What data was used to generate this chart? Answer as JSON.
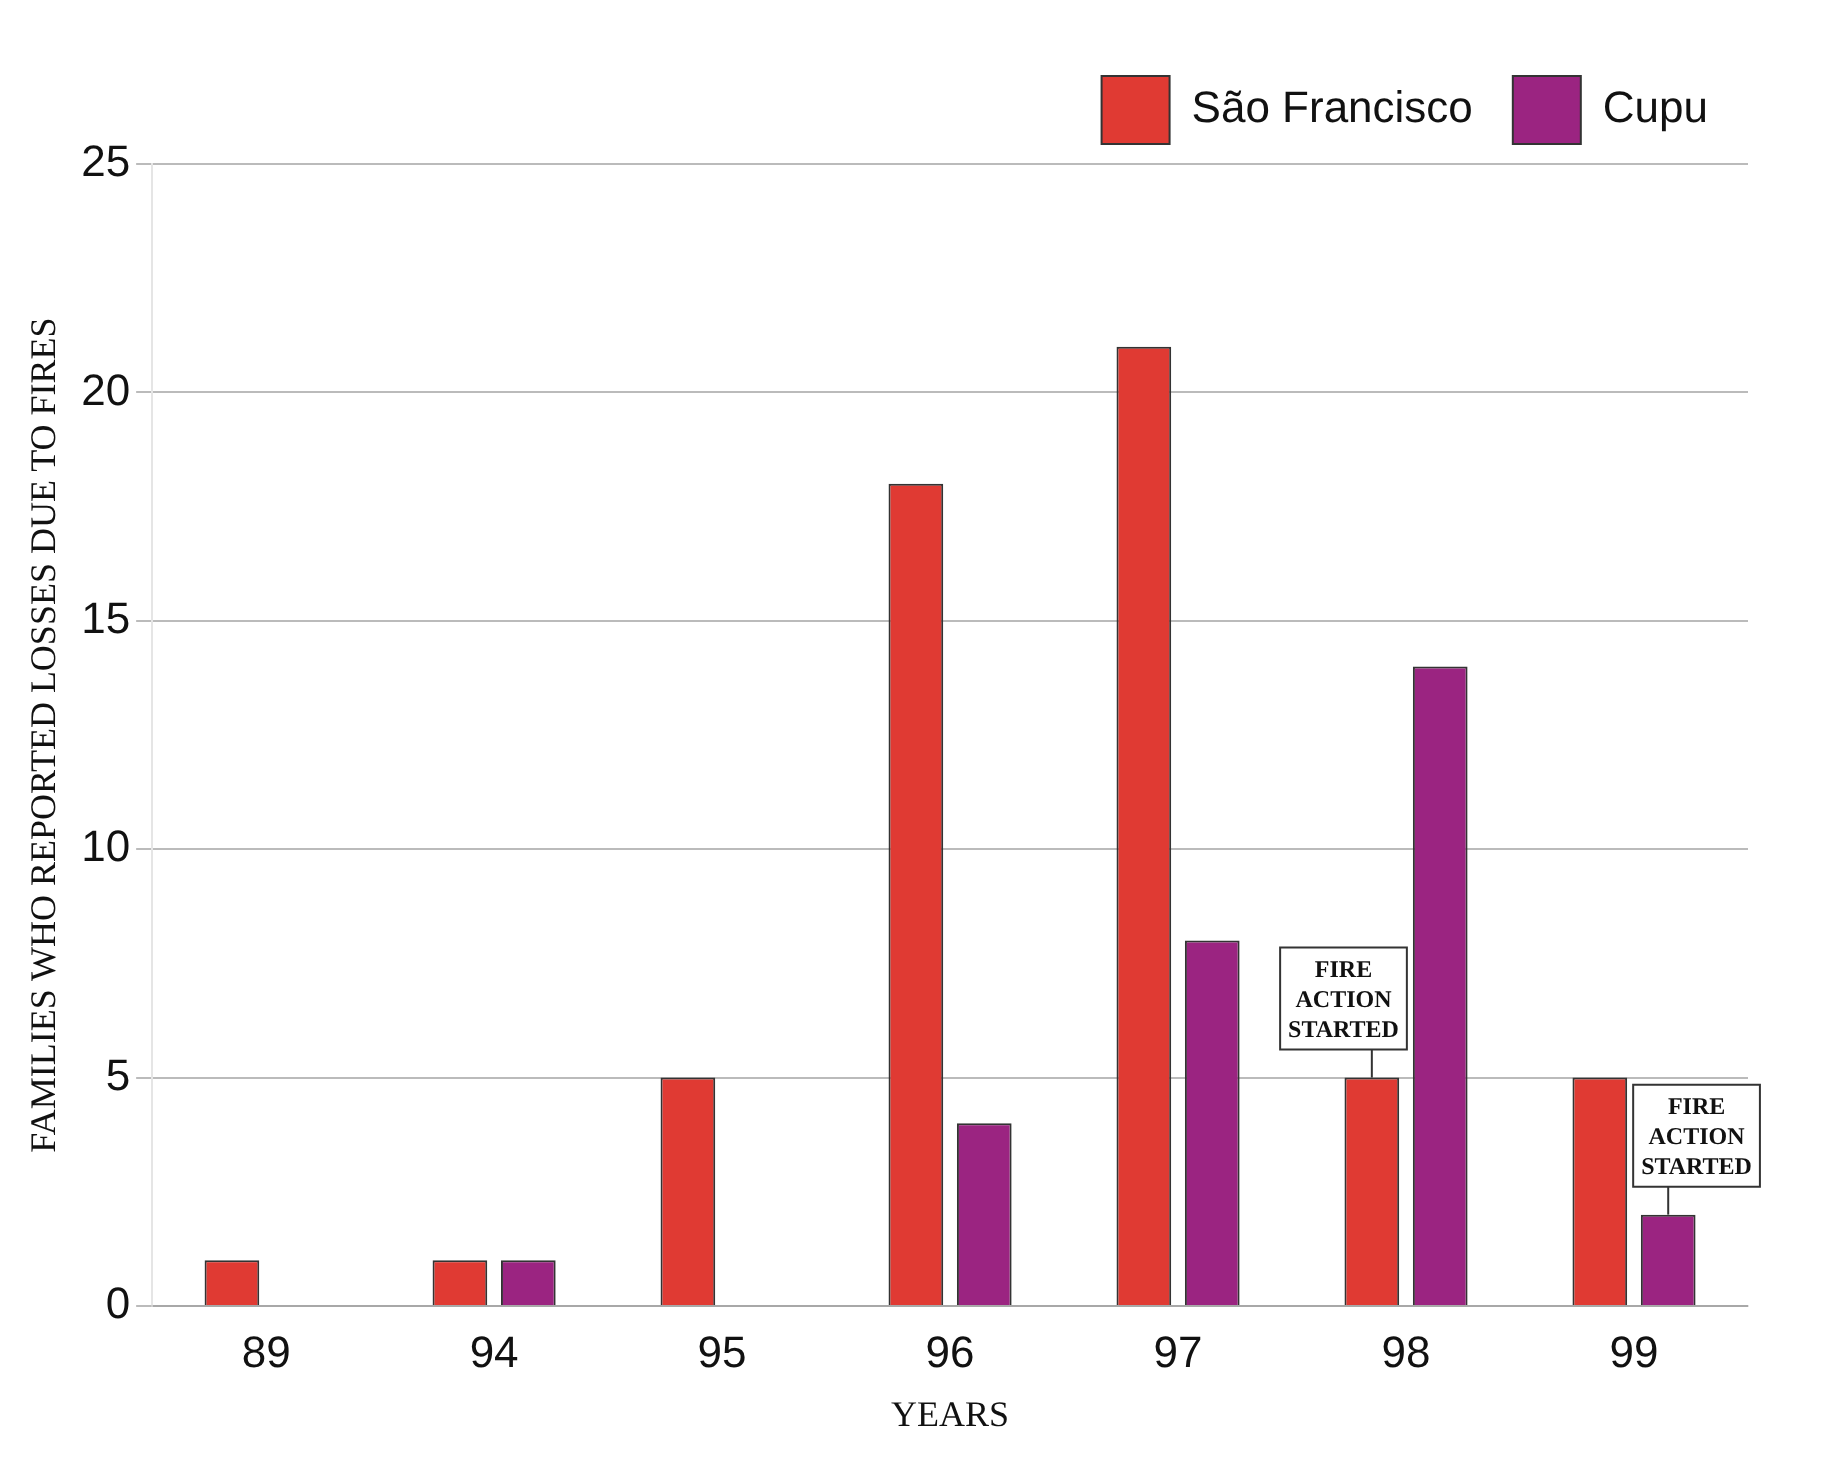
{
  "chart_data": {
    "type": "bar",
    "xlabel": "YEARS",
    "ylabel": "FAMILIES WHO REPORTED LOSSES DUE TO FIRES",
    "categories": [
      "89",
      "94",
      "95",
      "96",
      "97",
      "98",
      "99"
    ],
    "series": [
      {
        "name": "São Francisco",
        "color": "#e03a33",
        "values": [
          1,
          1,
          5,
          18,
          21,
          5,
          5
        ]
      },
      {
        "name": "Cupu",
        "color": "#9b2481",
        "values": [
          0,
          1,
          0,
          4,
          8,
          14,
          2
        ]
      }
    ],
    "ylim": [
      0,
      25
    ],
    "yticks": [
      0,
      5,
      10,
      15,
      20,
      25
    ],
    "grid": "y",
    "legend": "top right",
    "annotations": [
      {
        "text": "FIRE ACTION STARTED",
        "x": "98",
        "y": 5
      },
      {
        "text": "FIRE ACTION STARTED",
        "x": "99",
        "y": 2
      }
    ]
  }
}
